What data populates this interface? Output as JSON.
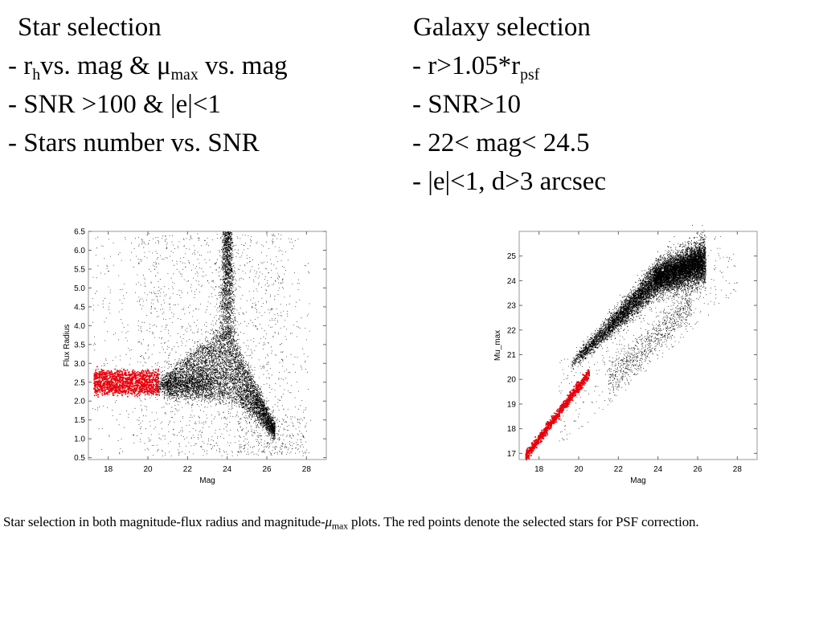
{
  "star_selection": {
    "title": "Star selection",
    "line1": {
      "r": "- r",
      "r_sub": "h",
      "vs_mag": "vs. mag & ",
      "mu": "μ",
      "mu_sub": "max",
      "tail": " vs. mag"
    },
    "line2": "- SNR >100 & |e|<1",
    "line3": "- Stars number vs. SNR"
  },
  "galaxy_selection": {
    "title": "Galaxy selection",
    "line1": {
      "prefix": "- r>1.05*r",
      "sub": "psf"
    },
    "line2": "- SNR>10",
    "line3": "- 22< mag< 24.5",
    "line4": "- |e|<1, d>3 arcsec"
  },
  "caption": {
    "text_before": "Star selection in both magnitude-flux radius and magnitude-",
    "mu": "μ",
    "mu_sub": "max",
    "text_after": " plots. The red points denote the selected stars for PSF correction."
  },
  "colors": {
    "field_points": "#000000",
    "selected_stars": "#e8000b",
    "axes": "#999999"
  },
  "chart_data": [
    {
      "type": "scatter",
      "title": "",
      "xlabel": "Mag",
      "ylabel": "Flux Radius",
      "xlim": [
        17,
        29
      ],
      "ylim": [
        0.45,
        6.5
      ],
      "xticks": [
        18,
        20,
        22,
        24,
        26,
        28
      ],
      "yticks": [
        0.5,
        1.0,
        1.5,
        2.0,
        2.5,
        3.0,
        3.5,
        4.0,
        4.5,
        5.0,
        5.5,
        6.0,
        6.5
      ],
      "ytick_labels": [
        "0.5",
        "1.0",
        "1.5",
        "2.0",
        "2.5",
        "3.0",
        "3.5",
        "4.0",
        "4.5",
        "5.0",
        "5.5",
        "6.0",
        "6.5"
      ],
      "series": [
        {
          "color": "#000000",
          "shape": "galaxy branch widening with magnitude: dense wedge from mag ~21 to ~26, radius ~1.2 to ~5, plume near mag 24 reaching 6.5; stellar locus at radius ~2.45 from mag 17 to 23; sparse scatter elsewhere",
          "points": [
            [
              21.0,
              3.2
            ],
            [
              22.0,
              3.6
            ],
            [
              23.0,
              3.9
            ],
            [
              24.0,
              4.4
            ],
            [
              24.0,
              6.0
            ],
            [
              25.0,
              3.0
            ],
            [
              26.0,
              1.4
            ],
            [
              26.3,
              1.1
            ],
            [
              20.0,
              5.0
            ],
            [
              18.5,
              6.0
            ]
          ]
        },
        {
          "color": "#e8000b",
          "shape": "selected stars: band at radius 2.2–2.8 from mag 17.2 to 20.5",
          "points": [
            [
              17.2,
              2.45
            ],
            [
              17.5,
              2.5
            ],
            [
              18.0,
              2.5
            ],
            [
              18.5,
              2.45
            ],
            [
              19.0,
              2.5
            ],
            [
              19.5,
              2.45
            ],
            [
              20.0,
              2.5
            ],
            [
              20.5,
              2.45
            ]
          ]
        }
      ]
    },
    {
      "type": "scatter",
      "title": "",
      "xlabel": "Mag",
      "ylabel": "Mu_max",
      "xlim": [
        17,
        29
      ],
      "ylim": [
        16.75,
        26.0
      ],
      "xticks": [
        18,
        20,
        22,
        24,
        26,
        28
      ],
      "yticks": [
        17,
        18,
        19,
        20,
        21,
        22,
        23,
        24,
        25
      ],
      "ytick_labels": [
        "17",
        "18",
        "19",
        "20",
        "21",
        "22",
        "23",
        "24",
        "25"
      ],
      "series": [
        {
          "color": "#000000",
          "shape": "galaxy sequence: thick band rising from (20,20.5) to (26,25), flattening above mag 24; fainter secondary locus below",
          "points": [
            [
              20.0,
              20.8
            ],
            [
              21.0,
              21.7
            ],
            [
              22.0,
              22.4
            ],
            [
              23.0,
              23.3
            ],
            [
              24.0,
              24.0
            ],
            [
              25.0,
              24.4
            ],
            [
              26.0,
              24.7
            ],
            [
              26.5,
              25.0
            ]
          ]
        },
        {
          "color": "#e8000b",
          "shape": "selected stars: narrow diagonal line from (17.3,16.9) to (20.5,20.3)",
          "points": [
            [
              17.3,
              16.9
            ],
            [
              18.0,
              17.6
            ],
            [
              18.5,
              18.1
            ],
            [
              19.0,
              18.7
            ],
            [
              19.5,
              19.2
            ],
            [
              20.0,
              19.8
            ],
            [
              20.5,
              20.3
            ]
          ]
        }
      ]
    }
  ]
}
